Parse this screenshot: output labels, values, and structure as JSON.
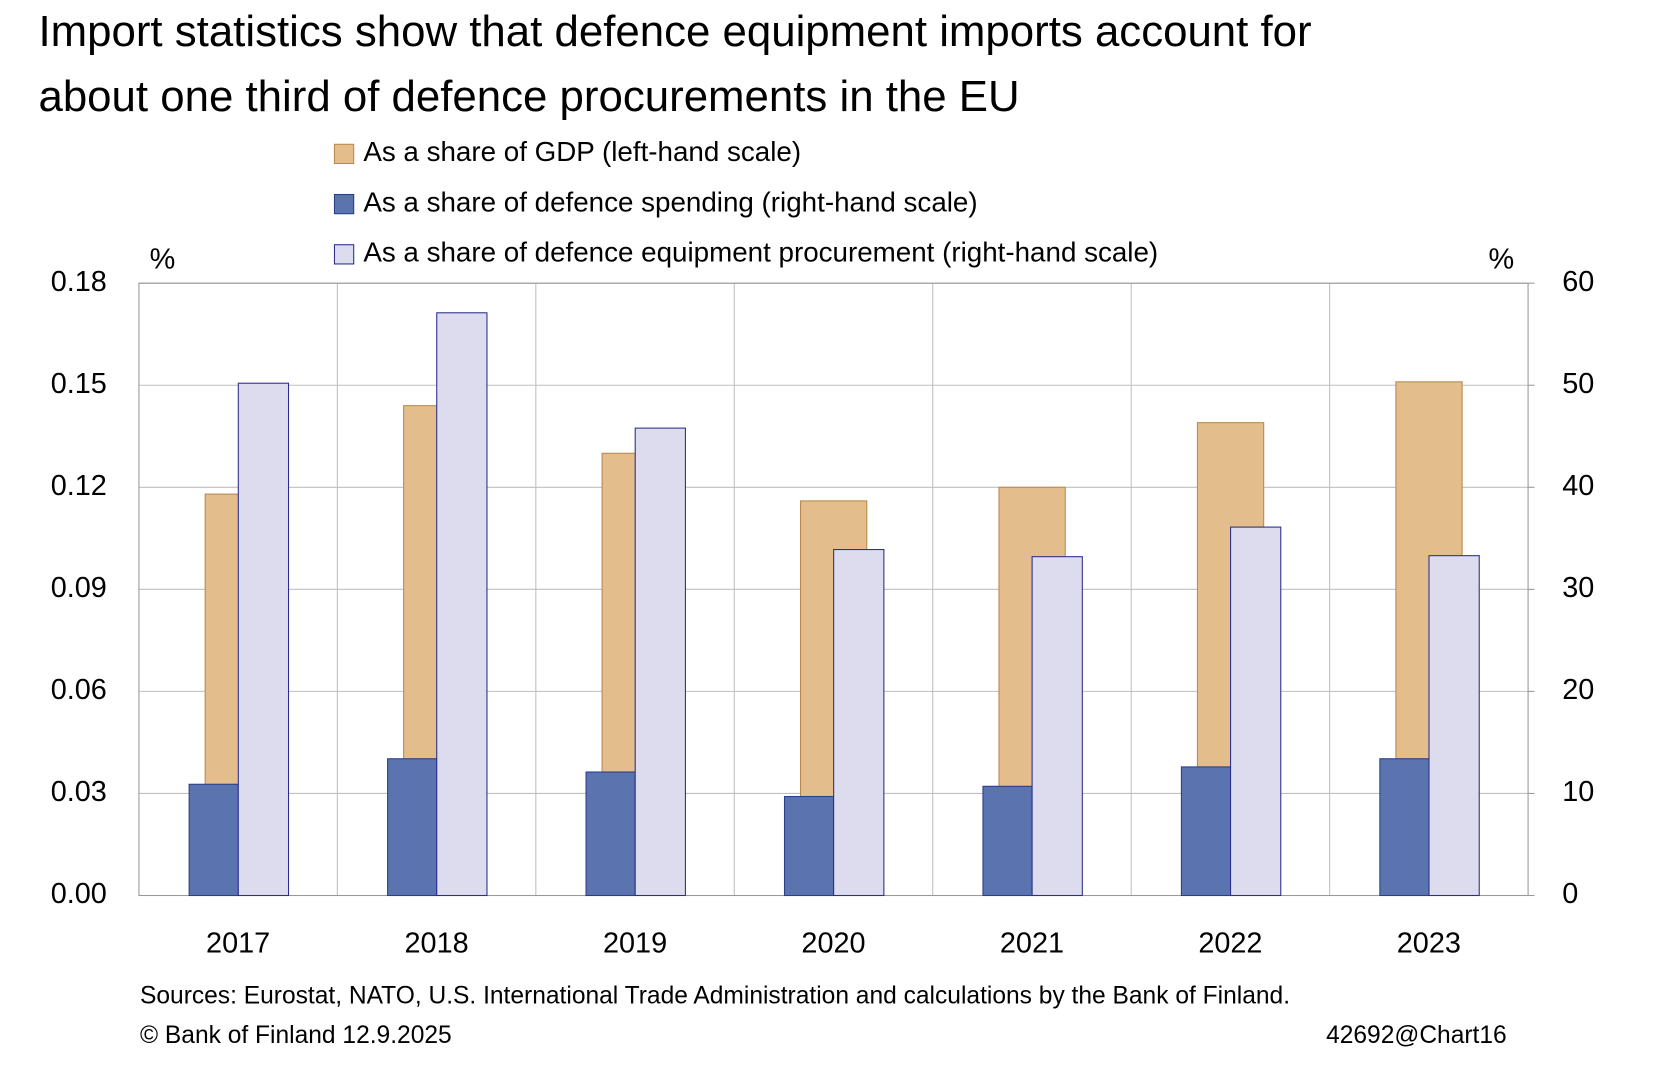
{
  "chart_data": {
    "type": "bar",
    "title": [
      "Import statistics show that defence equipment imports account for",
      "about one third of defence procurements in the EU"
    ],
    "ylabel": "%",
    "y2label": "%",
    "categories": [
      "2017",
      "2018",
      "2019",
      "2020",
      "2021",
      "2022",
      "2023"
    ],
    "series": [
      {
        "name": "As a share of GDP (left-hand scale)",
        "color": "#e3bd8b",
        "axis": "y",
        "values": [
          0.118,
          0.144,
          0.13,
          0.116,
          0.12,
          0.139,
          0.151
        ]
      },
      {
        "name": "As a share of defence spending (right-hand scale)",
        "color": "#5b74b0",
        "axis": "y2",
        "values": [
          10.9,
          13.4,
          12.1,
          9.7,
          10.7,
          12.6,
          13.4
        ]
      },
      {
        "name": "As a share of defence equipment procurement (right-hand scale)",
        "color": "#dcdcee",
        "axis": "y2",
        "values": [
          50.2,
          57.1,
          45.8,
          33.9,
          33.2,
          36.1,
          33.3
        ]
      }
    ],
    "ylim": [
      0,
      0.18
    ],
    "yticks": [
      {
        "value": 0,
        "label": "0.00"
      },
      0.03,
      0.06,
      0.09,
      0.12,
      0.15,
      0.18
    ],
    "y2lim": [
      0,
      60
    ],
    "y2ticks": [
      0,
      10,
      20,
      30,
      40,
      50,
      60
    ],
    "grid": true,
    "source": "Sources: Eurostat, NATO, U.S. International Trade Administration and calculations by the Bank of Finland.",
    "note": "© Bank of Finland 12.9.2025",
    "chart_id": "42692@Chart16"
  }
}
